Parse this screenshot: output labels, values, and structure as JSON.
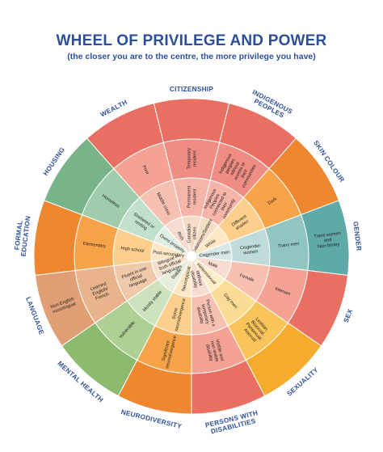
{
  "title": "WHEEL OF PRIVILEGE AND POWER",
  "subtitle": "(the closer you are to the centre, the more privilege you have)",
  "categories": [
    {
      "name": "CITIZENSHIP",
      "rings": [
        "Canadian citizen",
        "Permanent resident",
        "Temporary resident",
        ""
      ],
      "colors": [
        "#f6dcc5",
        "#f7b4a8",
        "#ef8c83",
        "#ea6f63"
      ]
    },
    {
      "name": "INDIGENOUS PEOPLES",
      "rings": [
        "Colonizers/Settlers",
        "Indigenous Peoples connected to their community",
        "Indigenous peoples without access to their communities",
        ""
      ],
      "colors": [
        "#f6dcc5",
        "#f7b4a8",
        "#ef8c83",
        "#ea6f63"
      ]
    },
    {
      "name": "SKIN COLOUR",
      "rings": [
        "White",
        "Different shades",
        "Dark",
        ""
      ],
      "colors": [
        "#fde7c4",
        "#fcd08c",
        "#f7a448",
        "#ef8731"
      ]
    },
    {
      "name": "GENDER",
      "rings": [
        "Cisgender men",
        "Cisgender women",
        "Trans men",
        "Trans women and Non-binary"
      ],
      "colors": [
        "#d7e8e6",
        "#bfdcda",
        "#90c5c2",
        "#5fa9a6"
      ]
    },
    {
      "name": "SEX",
      "rings": [
        "Male",
        "Female",
        "Intersex",
        ""
      ],
      "colors": [
        "#f8dcd2",
        "#f7c1b2",
        "#f3a293",
        "#ea6f63"
      ]
    },
    {
      "name": "SEXUALITY",
      "rings": [
        "Heterosexual",
        "Gay men",
        "Lesbian, Bisexual, Pansexual, Asexual",
        ""
      ],
      "colors": [
        "#fdeec8",
        "#fcdc94",
        "#f9c55a",
        "#f4ac2a"
      ]
    },
    {
      "name": "PERSONS WITH DISABILITIES",
      "rings": [
        "Without disability",
        "Person with a temporary disability",
        "Visible and non visible disability",
        ""
      ],
      "colors": [
        "#f8dcd2",
        "#f7c1b2",
        "#f3a293",
        "#ea6f63"
      ]
    },
    {
      "name": "NEURODIVERSITY",
      "rings": [
        "Neurotypical",
        "Some neurodivergence",
        "Significant neurodivergence",
        ""
      ],
      "colors": [
        "#fde7c4",
        "#fcd08c",
        "#f7a448",
        "#ef8731"
      ]
    },
    {
      "name": "MENTAL HEALTH",
      "rings": [
        "Stable",
        "Mostly stable",
        "Vulnerable",
        ""
      ],
      "colors": [
        "#e5efdc",
        "#cde3bd",
        "#afd094",
        "#8cba6e"
      ]
    },
    {
      "name": "LANGUAGE",
      "rings": [
        "Bilingual in both official languages",
        "Fluent in one official language",
        "Learned English/ French",
        "Non-English monolingual"
      ],
      "colors": [
        "#f6e1cc",
        "#efc9a9",
        "#e9b48c",
        "#e19f76"
      ]
    },
    {
      "name": "FORMAL EDUCATION",
      "rings": [
        "Post-secondary",
        "High school",
        "Elementary",
        ""
      ],
      "colors": [
        "#fde7c4",
        "#fcd08c",
        "#f7a448",
        "#ef8731"
      ]
    },
    {
      "name": "HOUSING",
      "rings": [
        "Owns property",
        "Sheltered or renting",
        "Homeless",
        ""
      ],
      "colors": [
        "#e0efe4",
        "#c2e1cc",
        "#9fccad",
        "#78b48a"
      ]
    },
    {
      "name": "WEALTH",
      "rings": [
        "Rich",
        "Middle class",
        "Poor",
        ""
      ],
      "colors": [
        "#f8dcd2",
        "#f7c1b2",
        "#f3a293",
        "#ea6f63"
      ]
    }
  ]
}
